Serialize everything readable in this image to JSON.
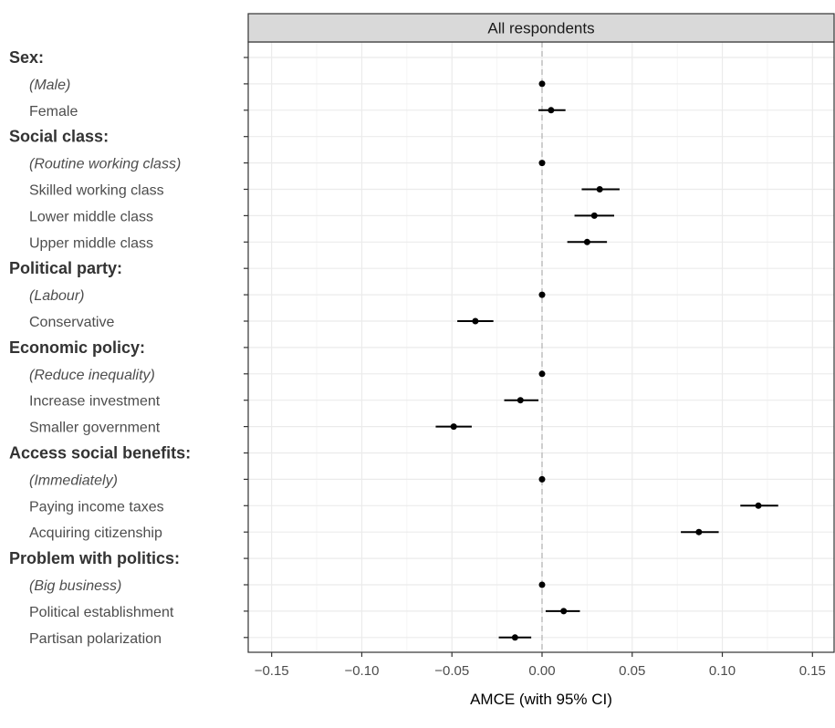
{
  "chart_data": {
    "type": "scatter",
    "subtype": "coefficient-plot-with-confidence-intervals",
    "facet_title": "All respondents",
    "xlabel": "AMCE (with 95% CI)",
    "ylabel": "",
    "xlim": [
      -0.163,
      0.162
    ],
    "x_ticks": [
      -0.15,
      -0.1,
      -0.05,
      0.0,
      0.05,
      0.1,
      0.15
    ],
    "x_tick_labels": [
      "−0.15",
      "−0.10",
      "−0.05",
      "0.00",
      "0.05",
      "0.10",
      "0.15"
    ],
    "reference_line": 0,
    "grid": true,
    "rows": [
      {
        "label": "Sex:",
        "kind": "header"
      },
      {
        "label": "(Male)",
        "kind": "reference",
        "estimate": 0
      },
      {
        "label": "Female",
        "kind": "level",
        "estimate": 0.005,
        "lower": -0.002,
        "upper": 0.013
      },
      {
        "label": "Social class:",
        "kind": "header"
      },
      {
        "label": "(Routine working class)",
        "kind": "reference",
        "estimate": 0
      },
      {
        "label": "Skilled working class",
        "kind": "level",
        "estimate": 0.032,
        "lower": 0.022,
        "upper": 0.043
      },
      {
        "label": "Lower middle class",
        "kind": "level",
        "estimate": 0.029,
        "lower": 0.018,
        "upper": 0.04
      },
      {
        "label": "Upper middle class",
        "kind": "level",
        "estimate": 0.025,
        "lower": 0.014,
        "upper": 0.036
      },
      {
        "label": "Political party:",
        "kind": "header"
      },
      {
        "label": "(Labour)",
        "kind": "reference",
        "estimate": 0
      },
      {
        "label": "Conservative",
        "kind": "level",
        "estimate": -0.037,
        "lower": -0.047,
        "upper": -0.027
      },
      {
        "label": "Economic policy:",
        "kind": "header"
      },
      {
        "label": "(Reduce inequality)",
        "kind": "reference",
        "estimate": 0
      },
      {
        "label": "Increase investment",
        "kind": "level",
        "estimate": -0.012,
        "lower": -0.021,
        "upper": -0.002
      },
      {
        "label": "Smaller government",
        "kind": "level",
        "estimate": -0.049,
        "lower": -0.059,
        "upper": -0.039
      },
      {
        "label": "Access social benefits:",
        "kind": "header"
      },
      {
        "label": "(Immediately)",
        "kind": "reference",
        "estimate": 0
      },
      {
        "label": "Paying income taxes",
        "kind": "level",
        "estimate": 0.12,
        "lower": 0.11,
        "upper": 0.131
      },
      {
        "label": "Acquiring citizenship",
        "kind": "level",
        "estimate": 0.087,
        "lower": 0.077,
        "upper": 0.098
      },
      {
        "label": "Problem with politics:",
        "kind": "header"
      },
      {
        "label": "(Big business)",
        "kind": "reference",
        "estimate": 0
      },
      {
        "label": "Political establishment",
        "kind": "level",
        "estimate": 0.012,
        "lower": 0.002,
        "upper": 0.021
      },
      {
        "label": "Partisan polarization",
        "kind": "level",
        "estimate": -0.015,
        "lower": -0.024,
        "upper": -0.006
      }
    ],
    "colors": {
      "point": "#000000",
      "interval": "#000000",
      "grid_major": "#ebebeb",
      "grid_minor": "#f5f5f5",
      "panel_border": "#333333",
      "strip_fill": "#d9d9d9",
      "reference_line": "#bfbfbf"
    }
  }
}
